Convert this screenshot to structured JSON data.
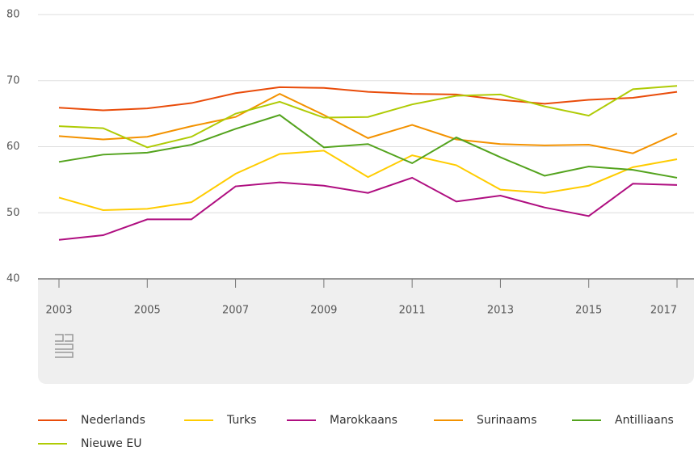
{
  "chart_data": {
    "type": "line",
    "x": [
      2003,
      2004,
      2005,
      2006,
      2007,
      2008,
      2009,
      2010,
      2011,
      2012,
      2013,
      2014,
      2015,
      2016,
      2017
    ],
    "series": [
      {
        "name": "Nederlands",
        "color": "#e94c0a",
        "values": [
          65.9,
          65.5,
          65.8,
          66.6,
          68.1,
          69.0,
          68.9,
          68.3,
          68.0,
          67.9,
          67.1,
          66.5,
          67.1,
          67.4,
          68.3
        ]
      },
      {
        "name": "Turks",
        "color": "#ffcc00",
        "values": [
          52.3,
          50.4,
          50.6,
          51.6,
          55.9,
          58.9,
          59.4,
          55.4,
          58.7,
          57.2,
          53.5,
          53.0,
          54.1,
          56.9,
          58.1
        ]
      },
      {
        "name": "Marokkaans",
        "color": "#af0e80",
        "values": [
          45.9,
          46.6,
          49.0,
          49.0,
          54.0,
          54.6,
          54.1,
          53.0,
          55.3,
          51.7,
          52.6,
          50.8,
          49.5,
          54.4,
          54.2
        ]
      },
      {
        "name": "Surinaams",
        "color": "#f39200",
        "values": [
          61.6,
          61.1,
          61.5,
          63.1,
          64.5,
          68.0,
          64.8,
          61.3,
          63.3,
          61.1,
          60.4,
          60.2,
          60.3,
          59.0,
          62.0
        ]
      },
      {
        "name": "Antilliaans",
        "color": "#53a31d",
        "values": [
          57.7,
          58.8,
          59.1,
          60.3,
          62.7,
          64.8,
          59.9,
          60.4,
          57.5,
          61.4,
          58.4,
          55.6,
          57.0,
          56.5,
          55.3
        ]
      },
      {
        "name": "Nieuwe EU",
        "color": "#afcb05",
        "values": [
          63.1,
          62.8,
          59.9,
          61.5,
          65.0,
          66.8,
          64.4,
          64.5,
          66.4,
          67.7,
          67.9,
          66.1,
          64.7,
          68.7,
          69.2
        ]
      }
    ],
    "xlim": [
      2003,
      2017
    ],
    "xticks": [
      2003,
      2005,
      2007,
      2009,
      2011,
      2013,
      2015,
      2017
    ],
    "ylim": [
      40,
      80
    ],
    "yticks": [
      40,
      50,
      60,
      70,
      80
    ],
    "grid": true
  }
}
